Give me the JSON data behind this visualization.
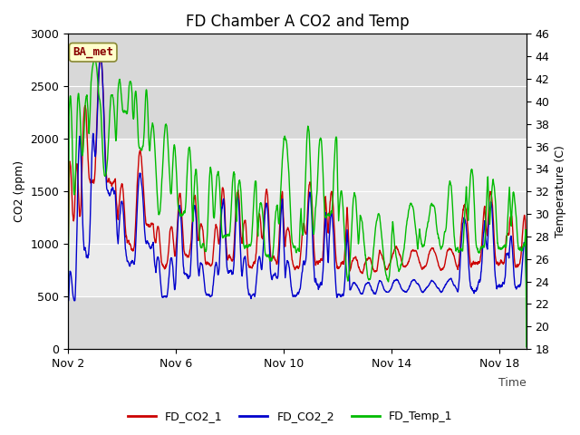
{
  "title": "FD Chamber A CO2 and Temp",
  "xlabel": "Time",
  "ylabel_left": "CO2 (ppm)",
  "ylabel_right": "Temperature (C)",
  "ylim_left": [
    0,
    3000
  ],
  "ylim_right": [
    18,
    46
  ],
  "xlim": [
    0,
    17
  ],
  "xtick_positions": [
    0,
    4,
    8,
    12,
    16
  ],
  "xtick_labels": [
    "Nov 2",
    "Nov 6",
    "Nov 10",
    "Nov 14",
    "Nov 18"
  ],
  "ytick_left": [
    0,
    500,
    1000,
    1500,
    2000,
    2500,
    3000
  ],
  "ytick_right": [
    18,
    20,
    22,
    24,
    26,
    28,
    30,
    32,
    34,
    36,
    38,
    40,
    42,
    44,
    46
  ],
  "color_co2_1": "#cc0000",
  "color_co2_2": "#0000cc",
  "color_temp": "#00bb00",
  "background_color": "#ffffff",
  "plot_bg_outer": "#d8d8d8",
  "plot_bg_inner": "#ebebeb",
  "legend_labels": [
    "FD_CO2_1",
    "FD_CO2_2",
    "FD_Temp_1"
  ],
  "annotation_text": "BA_met",
  "annotation_box_color": "#ffffcc",
  "annotation_border_color": "#888833",
  "annotation_text_color": "#880000",
  "title_fontsize": 12,
  "axis_fontsize": 9,
  "tick_fontsize": 9,
  "legend_fontsize": 9,
  "linewidth": 1.0
}
